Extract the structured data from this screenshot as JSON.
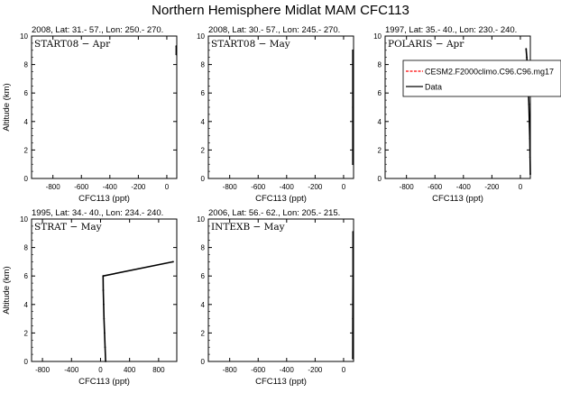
{
  "title": "Northern Hemisphere Midlat MAM CFC113",
  "chart_data": [
    {
      "type": "line",
      "header": "2008, Lat:  31.- 57., Lon: 250.- 270.",
      "panel_label": "START08 − Apr",
      "xlabel": "CFC113 (ppt)",
      "ylabel": "Altitude (km)",
      "xlim": [
        -950,
        70
      ],
      "ylim": [
        0,
        10
      ],
      "xticks": [
        -800,
        -600,
        -400,
        -200,
        0
      ],
      "yticks": [
        0,
        2,
        4,
        6,
        8,
        10
      ],
      "legend": null,
      "series": [
        {
          "style": "data",
          "x": [
            66,
            66
          ],
          "y": [
            8.7,
            9.3
          ]
        }
      ]
    },
    {
      "type": "line",
      "header": "2008, Lat:  30.- 57., Lon: 245.- 270.",
      "panel_label": "START08 − May",
      "xlabel": "CFC113 (ppt)",
      "ylabel": "",
      "xlim": [
        -950,
        70
      ],
      "ylim": [
        0,
        10
      ],
      "xticks": [
        -800,
        -600,
        -400,
        -200,
        0
      ],
      "yticks": [
        0,
        2,
        4,
        6,
        8,
        10
      ],
      "legend": null,
      "series": [
        {
          "style": "data",
          "x": [
            65,
            65,
            65
          ],
          "y": [
            1.0,
            5.0,
            9.0
          ]
        }
      ]
    },
    {
      "type": "line",
      "header": "1997, Lat: 35.- 40., Lon: 230.- 240.",
      "panel_label": "POLARIS − Apr",
      "xlabel": "CFC113 (ppt)",
      "ylabel": "",
      "xlim": [
        -950,
        70
      ],
      "ylim": [
        0,
        10
      ],
      "xticks": [
        -800,
        -600,
        -400,
        -200,
        0
      ],
      "yticks": [
        0,
        2,
        4,
        6,
        8,
        10
      ],
      "legend": {
        "position": "top-right",
        "entries": [
          {
            "label": "CESM2.F2000climo.C96.C96.mg17",
            "color": "#ff0000",
            "dash": true
          },
          {
            "label": "Data",
            "color": "#000000",
            "dash": false
          }
        ]
      },
      "series": [
        {
          "style": "data",
          "x": [
            40,
            45,
            50,
            55,
            60,
            63,
            66,
            68,
            70
          ],
          "y": [
            9.1,
            8.5,
            7.6,
            6.5,
            5.2,
            4.0,
            2.8,
            1.5,
            0.3
          ]
        }
      ]
    },
    {
      "type": "line",
      "header": "1995, Lat: 34.- 40., Lon: 234.- 240.",
      "panel_label": "STRAT − May",
      "xlabel": "CFC113 (ppt)",
      "ylabel": "Altitude (km)",
      "xlim": [
        -950,
        1050
      ],
      "ylim": [
        0,
        10
      ],
      "xticks": [
        -800,
        -400,
        0,
        400,
        800
      ],
      "yticks": [
        0,
        2,
        4,
        6,
        8,
        10
      ],
      "legend": null,
      "series": [
        {
          "style": "data",
          "x": [
            70,
            62,
            55,
            48,
            42,
            38,
            35,
            1000
          ],
          "y": [
            0,
            1.0,
            2.0,
            3.0,
            4.0,
            5.0,
            6.0,
            7.0
          ]
        }
      ]
    },
    {
      "type": "line",
      "header": "2006, Lat: 56.- 62., Lon: 205.- 215.",
      "panel_label": "INTEXB − May",
      "xlabel": "CFC113 (ppt)",
      "ylabel": "",
      "xlim": [
        -950,
        70
      ],
      "ylim": [
        0,
        10
      ],
      "xticks": [
        -800,
        -600,
        -400,
        -200,
        0
      ],
      "yticks": [
        0,
        2,
        4,
        6,
        8,
        10
      ],
      "legend": null,
      "series": [
        {
          "style": "data",
          "x": [
            64,
            65,
            66,
            66
          ],
          "y": [
            0.2,
            3.0,
            6.0,
            9.1
          ]
        }
      ]
    }
  ]
}
